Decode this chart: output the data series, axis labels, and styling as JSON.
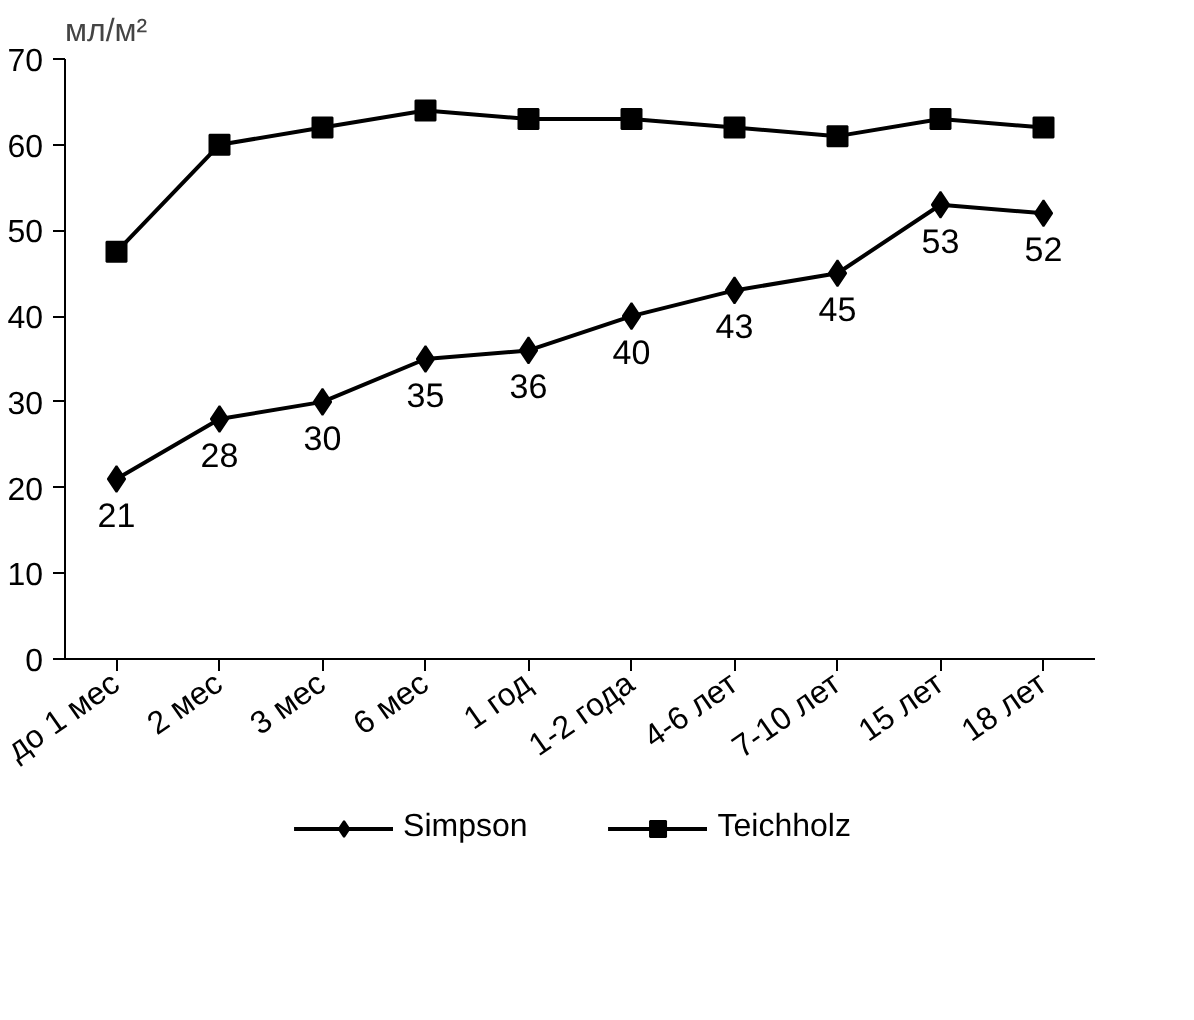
{
  "chart_data": {
    "type": "line",
    "ylabel": "мл/м²",
    "categories": [
      "до 1 мес",
      "2 мес",
      "3 мес",
      "6 мес",
      "1 год",
      "1-2 года",
      "4-6 лет",
      "7-10 лет",
      "15 лет",
      "18 лет"
    ],
    "series": [
      {
        "name": "Simpson",
        "color": "#000000",
        "marker": "diamond",
        "values": [
          21,
          28,
          30,
          35,
          36,
          40,
          43,
          45,
          53,
          52
        ],
        "value_labels": [
          "21",
          "28",
          "30",
          "35",
          "36",
          "40",
          "43",
          "45",
          "53",
          "52"
        ]
      },
      {
        "name": "Teichholz",
        "color": "#000000",
        "marker": "square",
        "values": [
          47.5,
          60,
          62,
          64,
          63,
          63,
          62,
          61,
          63,
          62
        ]
      }
    ],
    "ylim": [
      0,
      70
    ],
    "yticks": [
      0,
      10,
      20,
      30,
      40,
      50,
      60,
      70
    ],
    "grid": false,
    "legend": "bottom",
    "line_style": "solid"
  }
}
